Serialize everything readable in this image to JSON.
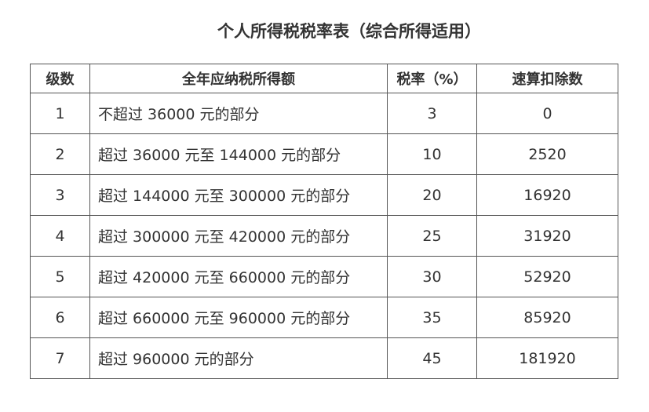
{
  "title": "个人所得税税率表（综合所得适用）",
  "table": {
    "headers": [
      "级数",
      "全年应纳税所得额",
      "税率（%）",
      "速算扣除数"
    ],
    "rows": [
      [
        "1",
        "不超过 36000 元的部分",
        "3",
        "0"
      ],
      [
        "2",
        "超过 36000 元至 144000 元的部分",
        "10",
        "2520"
      ],
      [
        "3",
        "超过 144000 元至 300000 元的部分",
        "20",
        "16920"
      ],
      [
        "4",
        "超过 300000 元至 420000 元的部分",
        "25",
        "31920"
      ],
      [
        "5",
        "超过 420000 元至 660000 元的部分",
        "30",
        "52920"
      ],
      [
        "6",
        "超过 660000 元至 960000 元的部分",
        "35",
        "85920"
      ],
      [
        "7",
        "超过 960000 元的部分",
        "45",
        "181920"
      ]
    ]
  }
}
